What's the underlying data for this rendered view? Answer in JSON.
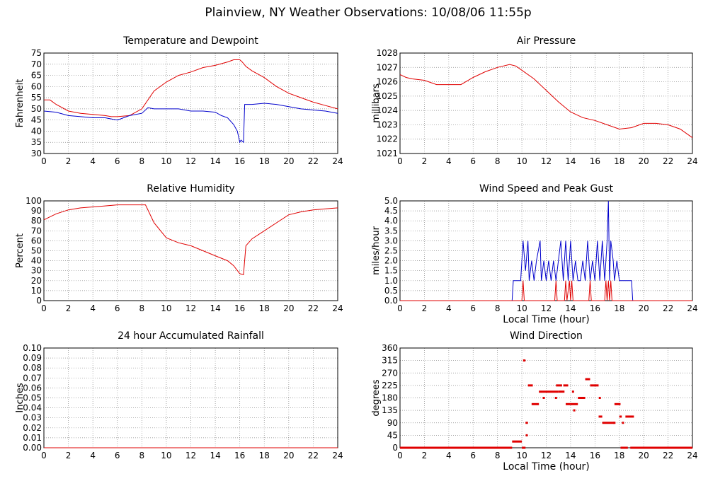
{
  "page": {
    "title": "Plainview, NY Weather Observations: 10/08/06 11:55p"
  },
  "colors": {
    "red": "#e00000",
    "blue": "#0000cc",
    "grid": "#888888"
  },
  "chart_data": [
    {
      "id": "temp",
      "type": "line",
      "title": "Temperature and Dewpoint",
      "xlabel": "",
      "ylabel": "Fahrenheit",
      "xlim": [
        0,
        24
      ],
      "ylim": [
        30,
        75
      ],
      "xticks": [
        0,
        2,
        4,
        6,
        8,
        10,
        12,
        14,
        16,
        18,
        20,
        22,
        24
      ],
      "yticks": [
        30,
        35,
        40,
        45,
        50,
        55,
        60,
        65,
        70,
        75
      ],
      "ytick_decimals": 0,
      "series": [
        {
          "color": "#e00000",
          "x": [
            0,
            0.5,
            1,
            2,
            3,
            4,
            5,
            5.5,
            6,
            7,
            8,
            9,
            10,
            11,
            12,
            13,
            14,
            15,
            15.5,
            16,
            16.2,
            16.5,
            17,
            18,
            19,
            20,
            21,
            22,
            23,
            24
          ],
          "y": [
            54,
            54,
            52,
            49,
            48,
            47.5,
            47,
            46.5,
            46.5,
            47,
            50,
            58,
            62,
            65,
            66.5,
            68.5,
            69.5,
            71,
            72,
            72,
            71,
            69,
            67,
            64,
            60,
            57,
            55,
            53,
            51.5,
            50
          ]
        },
        {
          "color": "#0000cc",
          "x": [
            0,
            1,
            2,
            3,
            4,
            5,
            5.5,
            6,
            7,
            8,
            8.5,
            9,
            10,
            11,
            12,
            13,
            14,
            14.5,
            15,
            15.5,
            15.8,
            16,
            16.1,
            16.3,
            16.4,
            17,
            18,
            19,
            20,
            21,
            22,
            23,
            24
          ],
          "y": [
            49,
            48.5,
            47,
            46.5,
            46,
            46,
            45.5,
            45,
            47,
            48,
            50.5,
            50,
            50,
            50,
            49,
            49,
            48.5,
            47,
            46,
            43,
            40,
            35,
            36,
            35,
            52,
            52,
            52.5,
            52,
            51,
            50,
            49.5,
            49,
            48
          ]
        }
      ]
    },
    {
      "id": "pressure",
      "type": "line",
      "title": "Air Pressure",
      "xlabel": "",
      "ylabel": "millibars",
      "xlim": [
        0,
        24
      ],
      "ylim": [
        1021,
        1028
      ],
      "xticks": [
        0,
        2,
        4,
        6,
        8,
        10,
        12,
        14,
        16,
        18,
        20,
        22,
        24
      ],
      "yticks": [
        1021,
        1022,
        1023,
        1024,
        1025,
        1026,
        1027,
        1028
      ],
      "ytick_decimals": 0,
      "series": [
        {
          "color": "#e00000",
          "x": [
            0,
            0.5,
            1,
            2,
            3,
            4,
            5,
            6,
            7,
            8,
            9,
            9.5,
            10,
            11,
            12,
            13,
            14,
            15,
            16,
            17,
            18,
            19,
            20,
            21,
            22,
            23,
            24
          ],
          "y": [
            1026.5,
            1026.3,
            1026.2,
            1026.1,
            1025.8,
            1025.8,
            1025.8,
            1026.3,
            1026.7,
            1027,
            1027.2,
            1027.1,
            1026.8,
            1026.2,
            1025.4,
            1024.6,
            1023.9,
            1023.5,
            1023.3,
            1023,
            1022.7,
            1022.8,
            1023.1,
            1023.1,
            1023,
            1022.7,
            1022.1
          ]
        }
      ]
    },
    {
      "id": "humidity",
      "type": "line",
      "title": "Relative Humidity",
      "xlabel": "",
      "ylabel": "Percent",
      "xlim": [
        0,
        24
      ],
      "ylim": [
        0,
        100
      ],
      "xticks": [
        0,
        2,
        4,
        6,
        8,
        10,
        12,
        14,
        16,
        18,
        20,
        22,
        24
      ],
      "yticks": [
        0,
        10,
        20,
        30,
        40,
        50,
        60,
        70,
        80,
        90,
        100
      ],
      "ytick_decimals": 0,
      "series": [
        {
          "color": "#e00000",
          "x": [
            0,
            0.5,
            1,
            2,
            3,
            4,
            5,
            6,
            7,
            8,
            8.3,
            9,
            10,
            11,
            12,
            13,
            14,
            15,
            15.5,
            16,
            16.3,
            16.5,
            17,
            18,
            19,
            20,
            21,
            22,
            23,
            24
          ],
          "y": [
            81,
            84,
            87,
            91,
            93,
            94,
            95,
            96,
            96,
            96,
            96,
            78,
            63,
            58,
            55,
            50,
            45,
            40,
            35,
            27,
            26,
            55,
            62,
            70,
            78,
            86,
            89,
            91,
            92,
            93
          ]
        }
      ]
    },
    {
      "id": "wind",
      "type": "line",
      "title": "Wind Speed and Peak Gust",
      "xlabel": "Local Time (hour)",
      "ylabel": "miles/hour",
      "xlim": [
        0,
        24
      ],
      "ylim": [
        0,
        5
      ],
      "xticks": [
        0,
        2,
        4,
        6,
        8,
        10,
        12,
        14,
        16,
        18,
        20,
        22,
        24
      ],
      "yticks": [
        0,
        0.5,
        1,
        1.5,
        2,
        2.5,
        3,
        3.5,
        4,
        4.5,
        5
      ],
      "ytick_decimals": 1,
      "series": [
        {
          "color": "#0000cc",
          "x": [
            0,
            9.2,
            9.3,
            9.9,
            10,
            10.1,
            10.3,
            10.5,
            10.6,
            10.8,
            11,
            11.2,
            11.5,
            11.6,
            11.8,
            12,
            12.2,
            12.4,
            12.6,
            12.8,
            13,
            13.2,
            13.4,
            13.6,
            13.8,
            14,
            14.2,
            14.4,
            14.6,
            14.8,
            15,
            15.2,
            15.4,
            15.6,
            15.8,
            16,
            16.2,
            16.4,
            16.6,
            16.8,
            17,
            17.1,
            17.2,
            17.3,
            17.5,
            17.6,
            17.8,
            18,
            18.2,
            18.4,
            18.6,
            18.8,
            19,
            19.1,
            19.2,
            24
          ],
          "y": [
            0,
            0,
            1,
            1,
            2,
            3,
            1.5,
            3,
            1,
            2,
            1,
            2,
            3,
            1,
            2,
            1,
            2,
            1,
            2,
            1,
            2,
            3,
            1,
            3,
            1,
            3,
            1,
            2,
            1,
            1,
            2,
            1,
            3,
            1,
            2,
            1,
            3,
            1,
            3,
            1,
            3,
            5,
            1,
            3,
            2,
            1,
            2,
            1,
            1,
            1,
            1,
            1,
            1,
            0,
            0,
            0
          ]
        },
        {
          "color": "#e00000",
          "x": [
            0,
            10,
            10.1,
            10.2,
            10.3,
            10.4,
            10.5,
            11,
            12,
            12.7,
            12.8,
            12.9,
            13.5,
            13.6,
            13.7,
            13.9,
            14,
            14.1,
            14.2,
            14.3,
            15.5,
            15.6,
            15.7,
            15.8,
            16.8,
            16.9,
            17,
            17.1,
            17.2,
            17.3,
            17.4,
            24
          ],
          "y": [
            0,
            0,
            1,
            0,
            0,
            0,
            0,
            0,
            0,
            0,
            1,
            0,
            0,
            1,
            0,
            1,
            0,
            1,
            0,
            0,
            0,
            1,
            0,
            0,
            0,
            1,
            0,
            1,
            0,
            1,
            0,
            0
          ]
        }
      ]
    },
    {
      "id": "rain",
      "type": "line",
      "title": "24 hour Accumulated Rainfall",
      "xlabel": "",
      "ylabel": "Inches",
      "xlim": [
        0,
        24
      ],
      "ylim": [
        0,
        0.1
      ],
      "xticks": [
        0,
        2,
        4,
        6,
        8,
        10,
        12,
        14,
        16,
        18,
        20,
        22,
        24
      ],
      "yticks": [
        0,
        0.01,
        0.02,
        0.03,
        0.04,
        0.05,
        0.06,
        0.07,
        0.08,
        0.09,
        0.1
      ],
      "ytick_decimals": 2,
      "series": [
        {
          "color": "#e00000",
          "x": [
            0,
            24
          ],
          "y": [
            0,
            0
          ]
        }
      ]
    },
    {
      "id": "direction",
      "type": "scatter",
      "title": "Wind Direction",
      "xlabel": "Local Time (hour)",
      "ylabel": "degrees",
      "xlim": [
        0,
        24
      ],
      "ylim": [
        0,
        360
      ],
      "xticks": [
        0,
        2,
        4,
        6,
        8,
        10,
        12,
        14,
        16,
        18,
        20,
        22,
        24
      ],
      "yticks": [
        0,
        45,
        90,
        135,
        180,
        225,
        270,
        315,
        360
      ],
      "ytick_decimals": 0,
      "segments": [
        {
          "color": "#e00000",
          "x0": 0,
          "x1": 9.2,
          "y": 0
        },
        {
          "color": "#e00000",
          "x0": 9.2,
          "x1": 10.0,
          "y": 22.5
        },
        {
          "color": "#e00000",
          "x0": 10.0,
          "x1": 10.3,
          "y": 0
        },
        {
          "color": "#e00000",
          "x0": 10.1,
          "x1": 10.3,
          "y": 315
        },
        {
          "color": "#e00000",
          "x0": 10.3,
          "x1": 10.5,
          "y": 90
        },
        {
          "color": "#e00000",
          "x0": 10.5,
          "x1": 10.9,
          "y": 225
        },
        {
          "color": "#e00000",
          "x0": 10.8,
          "x1": 11.4,
          "y": 157.5
        },
        {
          "color": "#e00000",
          "x0": 11.4,
          "x1": 13.0,
          "y": 202.5
        },
        {
          "color": "#e00000",
          "x0": 12.8,
          "x1": 13.3,
          "y": 225
        },
        {
          "color": "#e00000",
          "x0": 13.0,
          "x1": 13.5,
          "y": 202.5
        },
        {
          "color": "#e00000",
          "x0": 13.4,
          "x1": 13.8,
          "y": 225
        },
        {
          "color": "#e00000",
          "x0": 13.6,
          "x1": 14.0,
          "y": 157.5
        },
        {
          "color": "#e00000",
          "x0": 14.0,
          "x1": 14.6,
          "y": 157.5
        },
        {
          "color": "#e00000",
          "x0": 14.6,
          "x1": 15.2,
          "y": 180
        },
        {
          "color": "#e00000",
          "x0": 15.2,
          "x1": 15.6,
          "y": 247.5
        },
        {
          "color": "#e00000",
          "x0": 15.6,
          "x1": 16.3,
          "y": 225
        },
        {
          "color": "#e00000",
          "x0": 16.3,
          "x1": 16.6,
          "y": 112.5
        },
        {
          "color": "#e00000",
          "x0": 16.6,
          "x1": 17.6,
          "y": 90
        },
        {
          "color": "#e00000",
          "x0": 17.6,
          "x1": 18.1,
          "y": 157.5
        },
        {
          "color": "#e00000",
          "x0": 18.1,
          "x1": 18.7,
          "y": 0
        },
        {
          "color": "#e00000",
          "x0": 18.9,
          "x1": 24,
          "y": 0
        },
        {
          "color": "#e00000",
          "x0": 18.0,
          "x1": 18.2,
          "y": 112.5
        },
        {
          "color": "#e00000",
          "x0": 18.5,
          "x1": 19.2,
          "y": 112.5
        }
      ],
      "points": [
        {
          "color": "#e00000",
          "x": 10.4,
          "y": 45
        },
        {
          "color": "#e00000",
          "x": 11.8,
          "y": 180
        },
        {
          "color": "#e00000",
          "x": 12.8,
          "y": 180
        },
        {
          "color": "#e00000",
          "x": 14.2,
          "y": 202.5
        },
        {
          "color": "#e00000",
          "x": 14.3,
          "y": 135
        },
        {
          "color": "#e00000",
          "x": 16.4,
          "y": 180
        },
        {
          "color": "#e00000",
          "x": 17.6,
          "y": 90
        },
        {
          "color": "#e00000",
          "x": 18.3,
          "y": 90
        }
      ]
    }
  ]
}
